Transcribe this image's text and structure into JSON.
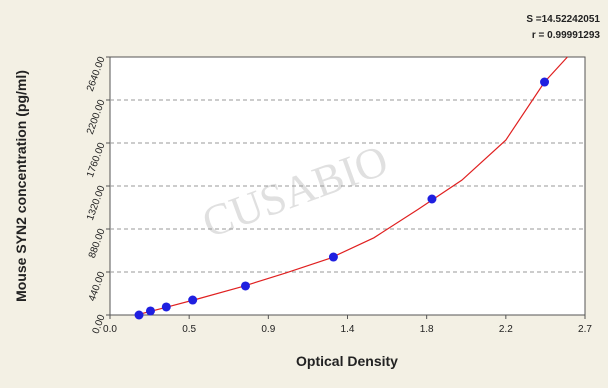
{
  "chart_data": {
    "type": "scatter",
    "annotations": [
      "S =14.52242051",
      "r = 0.99991293"
    ],
    "watermark": "CUSABIO",
    "xlabel": "Optical Density",
    "ylabel": "Mouse SYN2 concentration (pg/ml)",
    "xlim": [
      0,
      2.7
    ],
    "ylim": [
      0,
      2640
    ],
    "xticks": [
      {
        "value": 0,
        "label": "0.0"
      },
      {
        "value": 0.45,
        "label": "0.5"
      },
      0.9,
      {
        "value": 1.35,
        "label": "1.4"
      },
      1.8,
      {
        "value": 2.25,
        "label": "2.2"
      },
      2.7
    ],
    "yticks": [
      {
        "value": 0,
        "label": "0.00"
      },
      {
        "value": 440,
        "label": "440.00"
      },
      {
        "value": 880,
        "label": "880.00"
      },
      {
        "value": 1320,
        "label": "1320.00"
      },
      {
        "value": 1760,
        "label": "1760.00"
      },
      {
        "value": 2200,
        "label": "2200.00"
      },
      {
        "value": 2640,
        "label": "2640.00"
      }
    ],
    "grid": true,
    "series": [
      {
        "color": "#1f1fe0",
        "x": [
          0.165,
          0.23,
          0.32,
          0.47,
          0.77,
          1.27,
          1.83,
          2.47
        ],
        "values": [
          0,
          41,
          82,
          153,
          297,
          593,
          1187,
          2384
        ]
      }
    ],
    "fit": {
      "color": "#e02020",
      "x": [
        0.15,
        0.3,
        0.5,
        0.75,
        1.0,
        1.25,
        1.5,
        1.75,
        2.0,
        2.25,
        2.47,
        2.6
      ],
      "values": [
        0,
        70,
        165,
        290,
        430,
        580,
        790,
        1080,
        1380,
        1790,
        2384,
        2640
      ]
    }
  }
}
